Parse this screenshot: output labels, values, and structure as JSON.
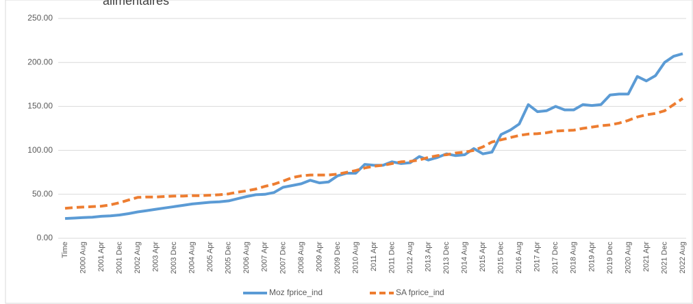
{
  "chart_data": {
    "type": "line",
    "title": "alimentaires",
    "categories": [
      "Time",
      null,
      "2000 Aug",
      null,
      "2001 Apr",
      null,
      "2001 Dec",
      null,
      "2002 Aug",
      null,
      "2003 Apr",
      null,
      "2003 Dec",
      null,
      "2004 Aug",
      null,
      "2005 Apr",
      null,
      "2005 Dec",
      null,
      "2006 Aug",
      null,
      "2007 Apr",
      null,
      "2007 Dec",
      null,
      "2008 Aug",
      null,
      "2009 Apr",
      null,
      "2009 Dec",
      null,
      "2010 Aug",
      null,
      "2011 Apr",
      null,
      "2011 Dec",
      null,
      "2012 Aug",
      null,
      "2013 Apr",
      null,
      "2013 Dec",
      null,
      "2014 Aug",
      null,
      "2015 Apr",
      null,
      "2015 Dec",
      null,
      "2016 Aug",
      null,
      "2017 Apr",
      null,
      "2017 Dec",
      null,
      "2018 Aug",
      null,
      "2019 Apr",
      null,
      "2019 Dec",
      null,
      "2020 Aug",
      null,
      "2021 Apr",
      null,
      "2021 Dec",
      null,
      "2022 Aug"
    ],
    "series": [
      {
        "name": "Moz fprice_ind",
        "color": "#5b9bd5",
        "dash": false,
        "values": [
          22.5,
          23,
          23.5,
          24,
          25,
          25.5,
          26.5,
          28,
          30,
          31.5,
          33,
          34.5,
          36,
          37.5,
          39,
          40,
          41,
          41.5,
          42.5,
          45,
          47.5,
          49.5,
          50,
          52,
          58,
          60,
          62,
          66,
          63,
          64,
          71,
          74,
          74,
          84,
          83,
          83,
          87,
          85,
          86,
          93,
          89,
          92,
          96,
          94,
          95,
          102,
          96,
          98,
          118,
          123,
          130,
          152,
          144,
          145,
          150,
          146,
          146,
          152,
          151,
          152,
          163,
          164,
          164,
          184,
          179,
          185,
          200,
          207,
          210
        ]
      },
      {
        "name": "SA fprice_ind",
        "color": "#ed7d31",
        "dash": true,
        "values": [
          34,
          35,
          35.5,
          36,
          36.5,
          38,
          40.5,
          43.5,
          46.5,
          47,
          47,
          47.5,
          48,
          48,
          48.5,
          48.5,
          49,
          49.5,
          50.5,
          52.5,
          54,
          56,
          59,
          61.5,
          65,
          69,
          71,
          72,
          72,
          72,
          73,
          75,
          77,
          80,
          82,
          83,
          85,
          87,
          87.5,
          89,
          92,
          94,
          95,
          97,
          98,
          100,
          104,
          109.5,
          112,
          114.5,
          117,
          118.5,
          119,
          120,
          122,
          122.5,
          123,
          125,
          126.5,
          128,
          129,
          131,
          134,
          138,
          140.5,
          142,
          145,
          152,
          159
        ]
      }
    ],
    "ylim": [
      0,
      250
    ],
    "yticks": [
      {
        "value": 0,
        "label": "0.00"
      },
      {
        "value": 50,
        "label": "50.00"
      },
      {
        "value": 100,
        "label": "100.00"
      },
      {
        "value": 150,
        "label": "150.00"
      },
      {
        "value": 200,
        "label": "200.00"
      },
      {
        "value": 250,
        "label": "250.00"
      }
    ],
    "grid": true,
    "legend": "bottom"
  }
}
